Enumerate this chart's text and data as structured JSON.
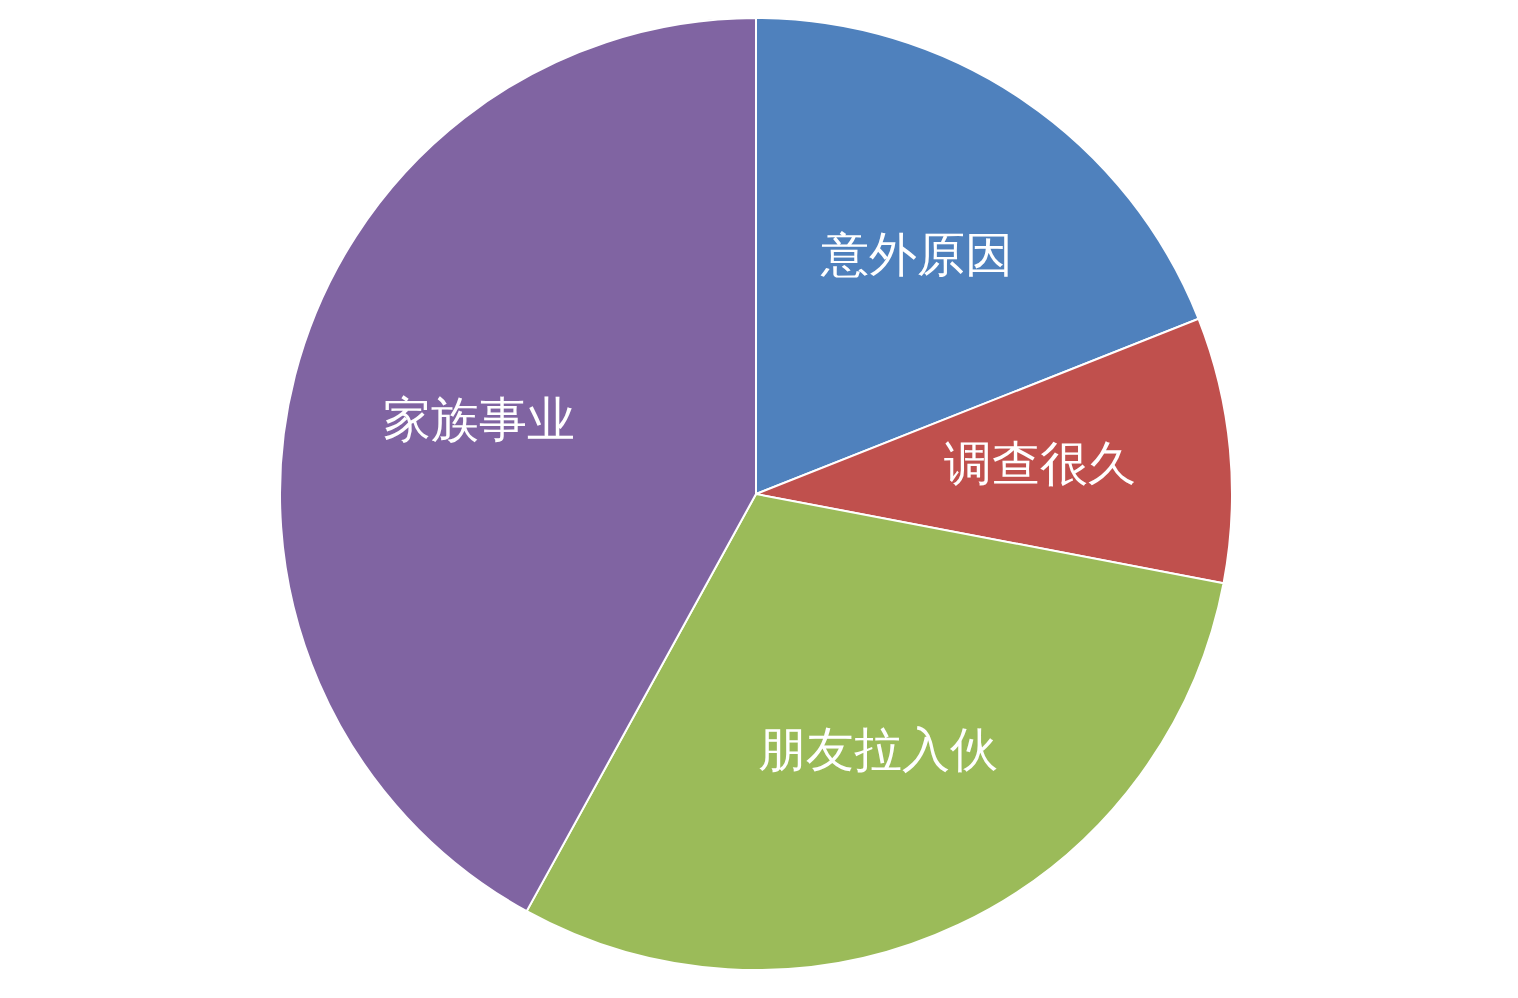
{
  "chart_data": {
    "type": "pie",
    "categories": [
      "意外原因",
      "调查很久",
      "朋友拉入伙",
      "家族事业"
    ],
    "values": [
      19,
      9,
      30,
      42
    ],
    "colors": [
      "#4f81bd",
      "#c0504d",
      "#9bbb59",
      "#8064a2"
    ],
    "legend": false
  }
}
